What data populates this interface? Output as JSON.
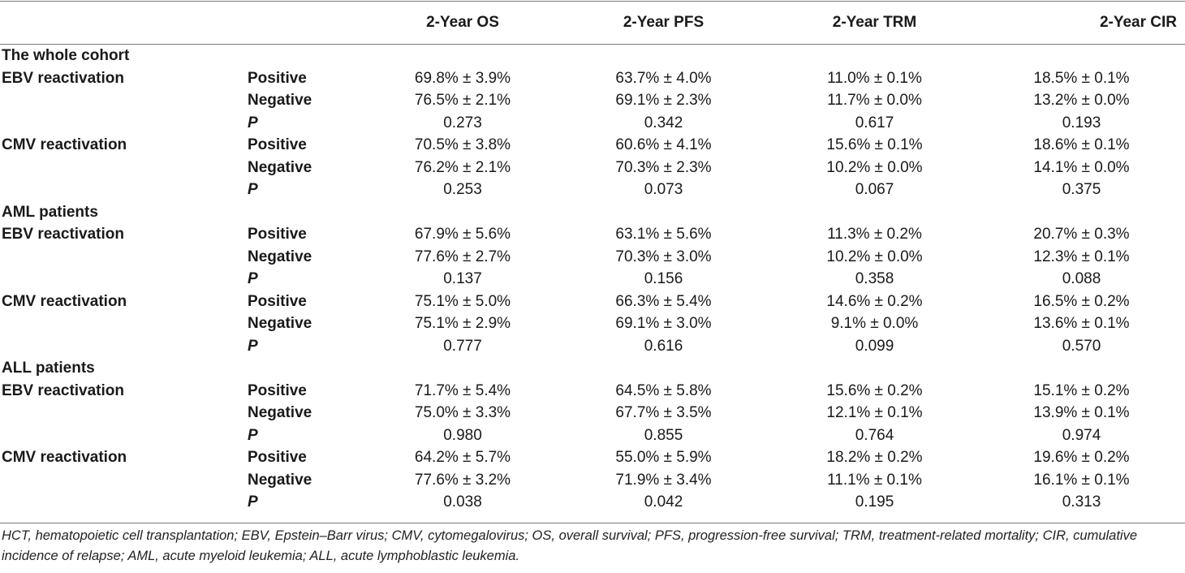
{
  "columns": [
    "2-Year OS",
    "2-Year PFS",
    "2-Year TRM",
    "2-Year CIR"
  ],
  "rows": [
    {
      "section": "The whole cohort"
    },
    {
      "group": "EBV reactivation",
      "label": "Positive",
      "values": [
        "69.8% ± 3.9%",
        "63.7% ± 4.0%",
        "11.0% ± 0.1%",
        "18.5% ± 0.1%"
      ]
    },
    {
      "group": "",
      "label": "Negative",
      "values": [
        "76.5% ± 2.1%",
        "69.1% ± 2.3%",
        "11.7% ± 0.0%",
        "13.2% ± 0.0%"
      ]
    },
    {
      "group": "",
      "label": "P",
      "values": [
        "0.273",
        "0.342",
        "0.617",
        "0.193"
      ]
    },
    {
      "group": "CMV reactivation",
      "label": "Positive",
      "values": [
        "70.5% ± 3.8%",
        "60.6% ± 4.1%",
        "15.6% ± 0.1%",
        "18.6% ± 0.1%"
      ]
    },
    {
      "group": "",
      "label": "Negative",
      "values": [
        "76.2% ± 2.1%",
        "70.3% ± 2.3%",
        "10.2% ± 0.0%",
        "14.1% ± 0.0%"
      ]
    },
    {
      "group": "",
      "label": "P",
      "values": [
        "0.253",
        "0.073",
        "0.067",
        "0.375"
      ]
    },
    {
      "section": "AML patients"
    },
    {
      "group": "EBV reactivation",
      "label": "Positive",
      "values": [
        "67.9% ± 5.6%",
        "63.1% ± 5.6%",
        "11.3% ± 0.2%",
        "20.7% ± 0.3%"
      ]
    },
    {
      "group": "",
      "label": "Negative",
      "values": [
        "77.6% ± 2.7%",
        "70.3% ± 3.0%",
        "10.2% ± 0.0%",
        "12.3% ± 0.1%"
      ]
    },
    {
      "group": "",
      "label": "P",
      "values": [
        "0.137",
        "0.156",
        "0.358",
        "0.088"
      ]
    },
    {
      "group": "CMV reactivation",
      "label": "Positive",
      "values": [
        "75.1% ± 5.0%",
        "66.3% ± 5.4%",
        "14.6% ± 0.2%",
        "16.5% ± 0.2%"
      ]
    },
    {
      "group": "",
      "label": "Negative",
      "values": [
        "75.1% ± 2.9%",
        "69.1% ± 3.0%",
        "9.1% ± 0.0%",
        "13.6% ± 0.1%"
      ]
    },
    {
      "group": "",
      "label": "P",
      "values": [
        "0.777",
        "0.616",
        "0.099",
        "0.570"
      ]
    },
    {
      "section": "ALL patients"
    },
    {
      "group": "EBV reactivation",
      "label": "Positive",
      "values": [
        "71.7% ± 5.4%",
        "64.5% ± 5.8%",
        "15.6% ± 0.2%",
        "15.1% ± 0.2%"
      ]
    },
    {
      "group": "",
      "label": "Negative",
      "values": [
        "75.0% ± 3.3%",
        "67.7% ± 3.5%",
        "12.1% ± 0.1%",
        "13.9% ± 0.1%"
      ]
    },
    {
      "group": "",
      "label": "P",
      "values": [
        "0.980",
        "0.855",
        "0.764",
        "0.974"
      ]
    },
    {
      "group": "CMV reactivation",
      "label": "Positive",
      "values": [
        "64.2% ± 5.7%",
        "55.0% ± 5.9%",
        "18.2% ± 0.2%",
        "19.6% ± 0.2%"
      ]
    },
    {
      "group": "",
      "label": "Negative",
      "values": [
        "77.6% ± 3.2%",
        "71.9% ± 3.4%",
        "11.1% ± 0.1%",
        "16.1% ± 0.1%"
      ]
    },
    {
      "group": "",
      "label": "P",
      "values": [
        "0.038",
        "0.042",
        "0.195",
        "0.313"
      ]
    }
  ],
  "footnote": "HCT, hematopoietic cell transplantation; EBV, Epstein–Barr virus; CMV, cytomegalovirus; OS, overall survival; PFS, progression-free survival; TRM, treatment-related mortality; CIR, cumulative incidence of relapse; AML, acute myeloid leukemia; ALL, acute lymphoblastic leukemia."
}
